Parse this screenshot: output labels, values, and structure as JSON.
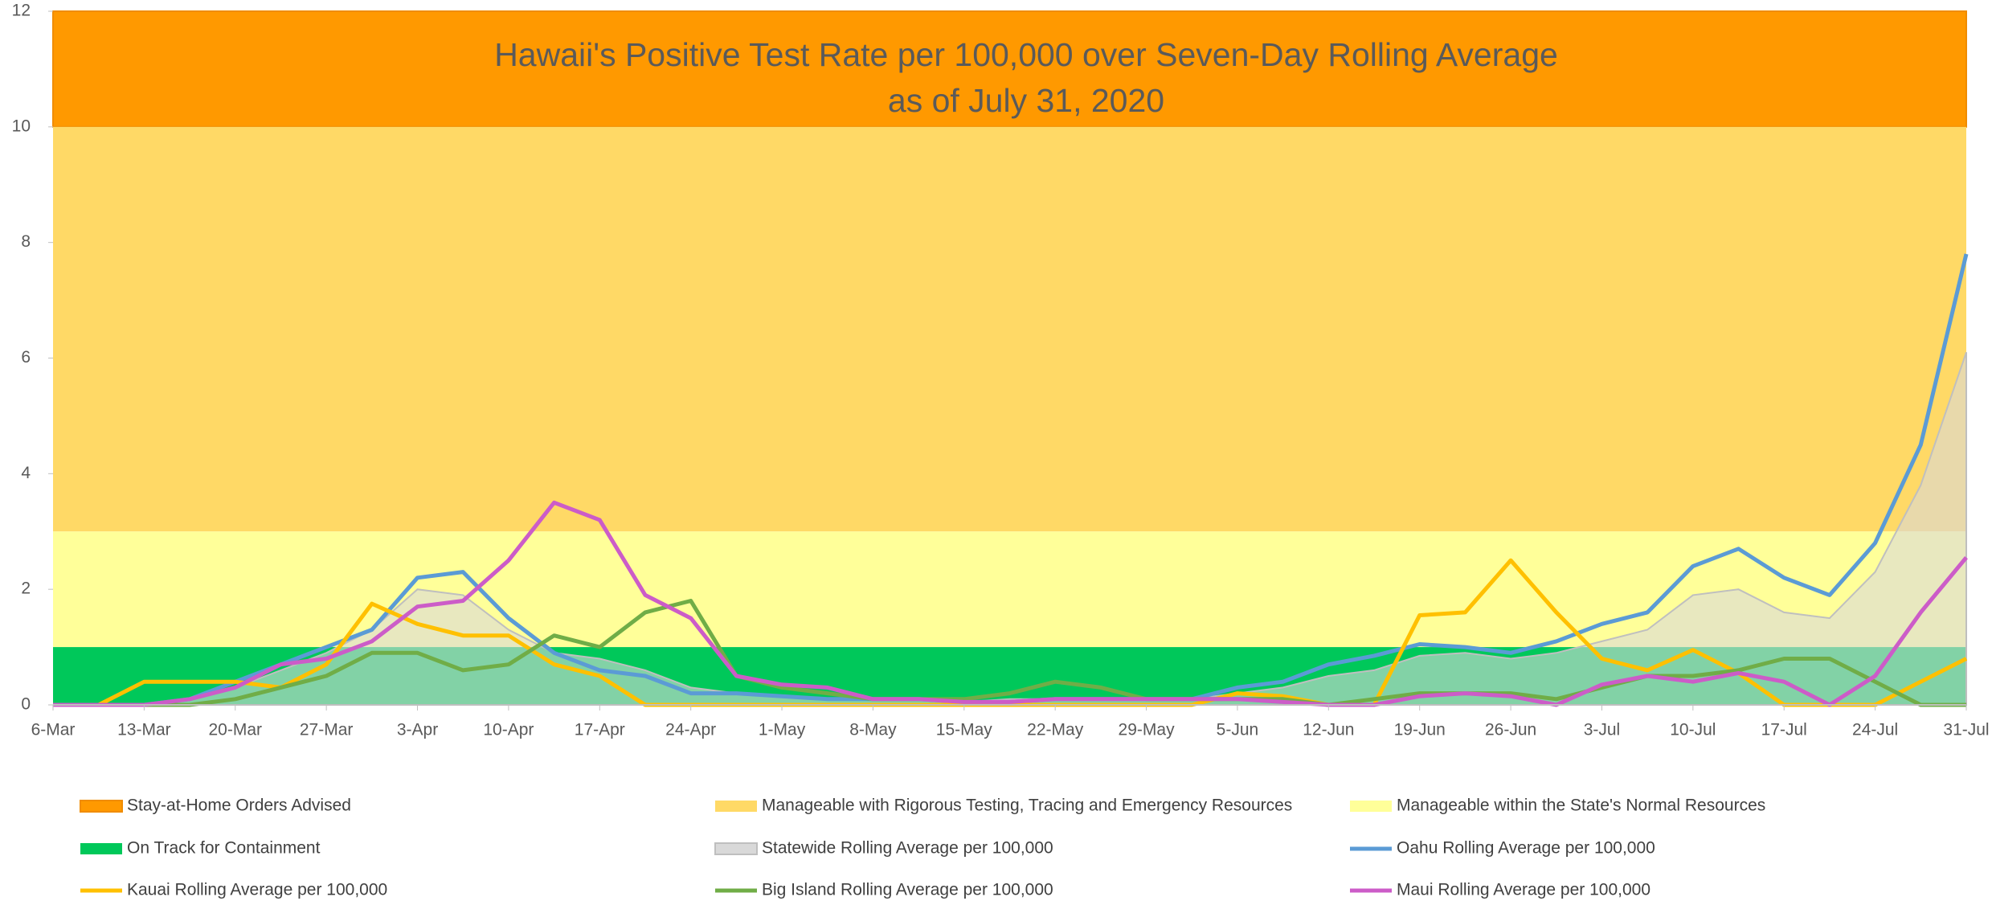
{
  "chart_data": {
    "type": "line",
    "title": "Hawaii's Positive Test Rate per 100,000 over Seven-Day Rolling Average",
    "subtitle": "as of July 31, 2020",
    "categories": [
      "6-Mar",
      null,
      "13-Mar",
      null,
      "20-Mar",
      null,
      "27-Mar",
      null,
      "3-Apr",
      null,
      "10-Apr",
      null,
      "17-Apr",
      null,
      "24-Apr",
      null,
      "1-May",
      null,
      "8-May",
      null,
      "15-May",
      null,
      "22-May",
      null,
      "29-May",
      null,
      "5-Jun",
      null,
      "12-Jun",
      null,
      "19-Jun",
      null,
      "26-Jun",
      null,
      "3-Jul",
      null,
      "10-Jul",
      null,
      "17-Jul",
      null,
      "24-Jul",
      null,
      "31-Jul"
    ],
    "ylim": [
      0,
      12
    ],
    "yticks": [
      0,
      2,
      4,
      6,
      8,
      10,
      12
    ],
    "bands": [
      {
        "name": "Stay-at-Home Orders Advised",
        "color": "#ff9900",
        "from": 10,
        "to": 12
      },
      {
        "name": "Manageable with Rigorous Testing, Tracing and Emergency Resources",
        "color": "#ffd966",
        "from": 3,
        "to": 10
      },
      {
        "name": "Manageable within the State's Normal Resources",
        "color": "#ffff99",
        "from": 1,
        "to": 3
      },
      {
        "name": "On Track for Containment",
        "color": "#00c85a",
        "from": 0,
        "to": 1
      }
    ],
    "series": [
      {
        "name": "Statewide Rolling Average per 100,000",
        "color": "#d9d9d9",
        "style": "area",
        "values": [
          0,
          0,
          0,
          0.1,
          0.3,
          0.6,
          0.9,
          1.3,
          2.0,
          1.9,
          1.3,
          0.9,
          0.8,
          0.6,
          0.3,
          0.2,
          0.15,
          0.1,
          0.1,
          0.1,
          0.05,
          0.1,
          0.1,
          0.1,
          0.1,
          0.1,
          0.2,
          0.3,
          0.5,
          0.6,
          0.85,
          0.9,
          0.8,
          0.9,
          1.1,
          1.3,
          1.9,
          2.0,
          1.6,
          1.5,
          2.3,
          3.8,
          6.1
        ]
      },
      {
        "name": "Oahu Rolling Average per 100,000",
        "color": "#5b9bd5",
        "style": "line",
        "values": [
          0,
          0,
          0,
          0.1,
          0.4,
          0.7,
          1.0,
          1.3,
          2.2,
          2.3,
          1.5,
          0.9,
          0.6,
          0.5,
          0.2,
          0.2,
          0.15,
          0.1,
          0.1,
          0.1,
          0.05,
          0.05,
          0.1,
          0.1,
          0.1,
          0.1,
          0.3,
          0.4,
          0.7,
          0.85,
          1.05,
          1.0,
          0.9,
          1.1,
          1.4,
          1.6,
          2.4,
          2.7,
          2.2,
          1.9,
          2.8,
          4.5,
          7.8
        ]
      },
      {
        "name": "Kauai Rolling Average per 100,000",
        "color": "#ffc000",
        "style": "line",
        "values": [
          0,
          0,
          0.4,
          0.4,
          0.4,
          0.3,
          0.7,
          1.75,
          1.4,
          1.2,
          1.2,
          0.7,
          0.5,
          0,
          0,
          0,
          0,
          0,
          0,
          0,
          0,
          0,
          0,
          0,
          0,
          0,
          0.2,
          0.15,
          0,
          0,
          1.55,
          1.6,
          2.5,
          1.6,
          0.8,
          0.6,
          0.95,
          0.55,
          0,
          0,
          0,
          0.4,
          0.8
        ]
      },
      {
        "name": "Big Island Rolling Average per 100,000",
        "color": "#70ad47",
        "style": "line",
        "values": [
          0,
          0,
          0,
          0,
          0.1,
          0.3,
          0.5,
          0.9,
          0.9,
          0.6,
          0.7,
          1.2,
          1.0,
          1.6,
          1.8,
          0.5,
          0.3,
          0.2,
          0.1,
          0.1,
          0.1,
          0.2,
          0.4,
          0.3,
          0.1,
          0.1,
          0.1,
          0.1,
          0,
          0.1,
          0.2,
          0.2,
          0.2,
          0.1,
          0.3,
          0.5,
          0.5,
          0.6,
          0.8,
          0.8,
          0.4,
          0,
          0
        ]
      },
      {
        "name": "Maui Rolling Average per 100,000",
        "color": "#cc5cc8",
        "style": "line",
        "values": [
          0,
          0,
          0,
          0.1,
          0.3,
          0.7,
          0.8,
          1.1,
          1.7,
          1.8,
          2.5,
          3.5,
          3.2,
          1.9,
          1.5,
          0.5,
          0.35,
          0.3,
          0.1,
          0.1,
          0.05,
          0.05,
          0.1,
          0.1,
          0.1,
          0.1,
          0.1,
          0.05,
          0,
          0,
          0.15,
          0.2,
          0.15,
          0,
          0.35,
          0.5,
          0.4,
          0.55,
          0.4,
          0,
          0.5,
          1.6,
          2.55
        ]
      }
    ]
  }
}
